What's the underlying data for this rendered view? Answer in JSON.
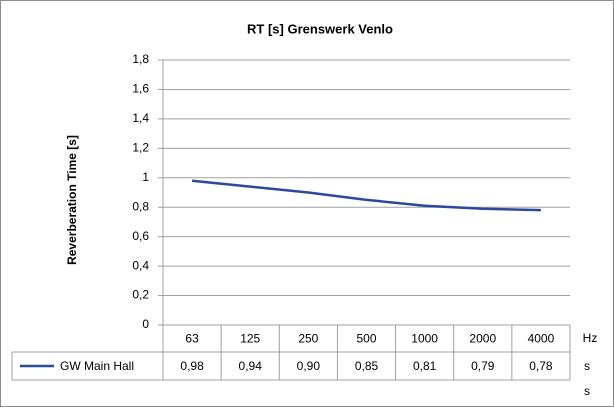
{
  "chart_data": {
    "type": "line",
    "title": "RT [s] Grenswerk Venlo",
    "y_label": "Reverberation Time [s]",
    "categories": [
      "63",
      "125",
      "250",
      "500",
      "1000",
      "2000",
      "4000"
    ],
    "series": [
      {
        "name": "GW Main Hall",
        "color": "#2b4a9b",
        "values": [
          0.98,
          0.94,
          0.9,
          0.85,
          0.81,
          0.79,
          0.78
        ],
        "value_labels": [
          "0,98",
          "0,94",
          "0,90",
          "0,85",
          "0,81",
          "0,79",
          "0,78"
        ]
      }
    ],
    "ylim": [
      0,
      1.8
    ],
    "yticks": [
      0,
      {
        "value": 0.2,
        "label": "0,2"
      },
      {
        "value": 0.4,
        "label": "0,4"
      },
      {
        "value": 0.6,
        "label": "0,6"
      },
      {
        "value": 0.8,
        "label": "0,8"
      },
      1,
      {
        "value": 1.2,
        "label": "1,2"
      },
      {
        "value": 1.4,
        "label": "1,4"
      },
      {
        "value": 1.6,
        "label": "1,6"
      },
      {
        "value": 1.8,
        "label": "1,8"
      }
    ],
    "grid": true,
    "x_unit": "Hz",
    "table_units": [
      "s",
      "s"
    ]
  }
}
